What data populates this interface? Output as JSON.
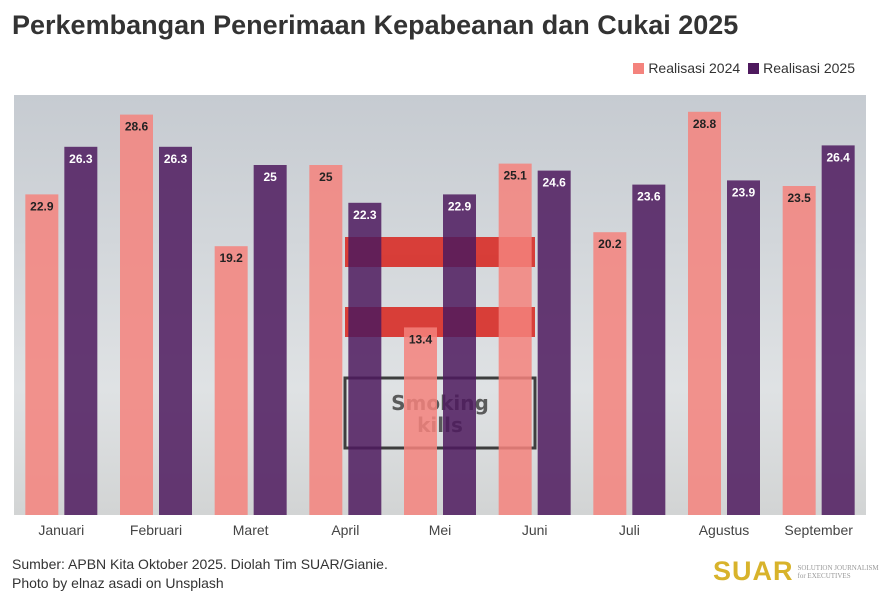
{
  "chart_data": {
    "type": "bar",
    "title": "Perkembangan Penerimaan Kepabeanan dan Cukai 2025",
    "categories": [
      "Januari",
      "Februari",
      "Maret",
      "April",
      "Mei",
      "Juni",
      "Juli",
      "Agustus",
      "September"
    ],
    "series": [
      {
        "name": "Realisasi 2024",
        "color": "#f4837d",
        "values": [
          22.9,
          28.6,
          19.2,
          25,
          13.4,
          25.1,
          20.2,
          28.8,
          23.5
        ]
      },
      {
        "name": "Realisasi 2025",
        "color": "#4e1a5e",
        "values": [
          26.3,
          26.3,
          25,
          22.3,
          22.9,
          24.6,
          23.6,
          23.9,
          26.4
        ]
      }
    ],
    "ylim": [
      0,
      30
    ],
    "grid": false,
    "legend": "top-right",
    "xlabel": "",
    "ylabel": ""
  },
  "source": "Sumber: APBN Kita Oktober 2025. Diolah Tim SUAR/Gianie.",
  "photo_credit": "Photo by elnaz asadi on Unsplash",
  "background_text": "Smoking kills",
  "logo": {
    "name": "SUAR",
    "tagline1": "SOLUTION JOURNALISM",
    "tagline2": "for EXECUTIVES"
  }
}
